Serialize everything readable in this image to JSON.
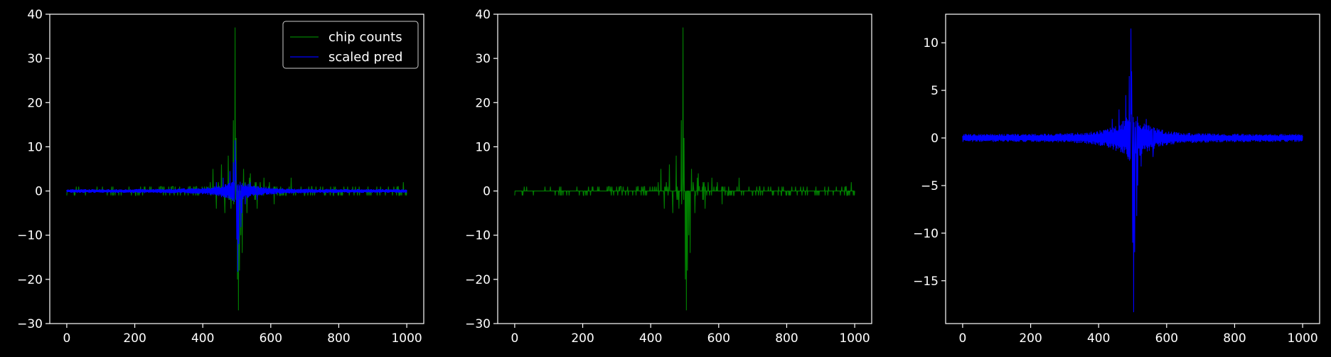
{
  "chart_data": [
    {
      "type": "line",
      "title": "",
      "xlabel": "",
      "ylabel": "",
      "xlim": [
        -50,
        1050
      ],
      "ylim": [
        -30,
        40
      ],
      "xticks": [
        0,
        200,
        400,
        600,
        800,
        1000
      ],
      "yticks": [
        -30,
        -20,
        -10,
        0,
        10,
        20,
        30,
        40
      ],
      "grid": false,
      "legend": {
        "placement": "top-right",
        "entries": [
          {
            "label": "chip counts",
            "color": "#008000"
          },
          {
            "label": "scaled pred",
            "color": "#0000ff"
          }
        ]
      },
      "series": [
        {
          "name": "chip counts",
          "color": "#008000",
          "x_range": [
            0,
            1000
          ],
          "baseline": 0,
          "noise_amplitude": 2,
          "peaks": [
            {
              "x": 430,
              "value": 5
            },
            {
              "x": 440,
              "value": -4
            },
            {
              "x": 455,
              "value": 6
            },
            {
              "x": 465,
              "value": -5
            },
            {
              "x": 475,
              "value": 8
            },
            {
              "x": 483,
              "value": -4
            },
            {
              "x": 490,
              "value": 16
            },
            {
              "x": 495,
              "value": 37
            },
            {
              "x": 498,
              "value": 12
            },
            {
              "x": 502,
              "value": -20
            },
            {
              "x": 505,
              "value": -27
            },
            {
              "x": 508,
              "value": -18
            },
            {
              "x": 512,
              "value": -10
            },
            {
              "x": 516,
              "value": -14
            },
            {
              "x": 520,
              "value": 5
            },
            {
              "x": 530,
              "value": -5
            },
            {
              "x": 540,
              "value": 4
            },
            {
              "x": 560,
              "value": -4
            },
            {
              "x": 580,
              "value": 3
            },
            {
              "x": 610,
              "value": -3
            },
            {
              "x": 660,
              "value": 3
            },
            {
              "x": 990,
              "value": 2
            }
          ]
        },
        {
          "name": "scaled pred",
          "color": "#0000ff",
          "x_range": [
            0,
            1000
          ],
          "band_width": 0.4,
          "peaks": [
            {
              "x": 440,
              "value": 2
            },
            {
              "x": 460,
              "value": 3
            },
            {
              "x": 480,
              "value": 4.5
            },
            {
              "x": 490,
              "value": 6.5
            },
            {
              "x": 495,
              "value": 11.5
            },
            {
              "x": 497,
              "value": 7
            },
            {
              "x": 500,
              "value": -11
            },
            {
              "x": 503,
              "value": -18.3
            },
            {
              "x": 506,
              "value": -12
            },
            {
              "x": 512,
              "value": -8.2
            },
            {
              "x": 515,
              "value": -5
            },
            {
              "x": 525,
              "value": -3
            },
            {
              "x": 540,
              "value": 2
            },
            {
              "x": 560,
              "value": -2
            }
          ]
        }
      ]
    },
    {
      "type": "line",
      "title": "",
      "xlabel": "",
      "ylabel": "",
      "xlim": [
        -50,
        1050
      ],
      "ylim": [
        -30,
        40
      ],
      "xticks": [
        0,
        200,
        400,
        600,
        800,
        1000
      ],
      "yticks": [
        -30,
        -20,
        -10,
        0,
        10,
        20,
        30,
        40
      ],
      "grid": false,
      "series": [
        {
          "name": "chip counts",
          "color": "#008000",
          "x_range": [
            0,
            1000
          ],
          "baseline": 0,
          "noise_amplitude": 2,
          "peaks": [
            {
              "x": 430,
              "value": 5
            },
            {
              "x": 440,
              "value": -4
            },
            {
              "x": 455,
              "value": 6
            },
            {
              "x": 465,
              "value": -5
            },
            {
              "x": 475,
              "value": 8
            },
            {
              "x": 483,
              "value": -4
            },
            {
              "x": 490,
              "value": 16
            },
            {
              "x": 495,
              "value": 37
            },
            {
              "x": 498,
              "value": 12
            },
            {
              "x": 502,
              "value": -20
            },
            {
              "x": 505,
              "value": -27
            },
            {
              "x": 508,
              "value": -18
            },
            {
              "x": 512,
              "value": -10
            },
            {
              "x": 516,
              "value": -14
            },
            {
              "x": 520,
              "value": 5
            },
            {
              "x": 530,
              "value": -5
            },
            {
              "x": 540,
              "value": 4
            },
            {
              "x": 560,
              "value": -4
            },
            {
              "x": 580,
              "value": 3
            },
            {
              "x": 610,
              "value": -3
            },
            {
              "x": 660,
              "value": 3
            },
            {
              "x": 990,
              "value": 2
            }
          ]
        }
      ]
    },
    {
      "type": "line",
      "title": "",
      "xlabel": "",
      "ylabel": "",
      "xlim": [
        -50,
        1050
      ],
      "ylim": [
        -19.5,
        13
      ],
      "xticks": [
        0,
        200,
        400,
        600,
        800,
        1000
      ],
      "yticks": [
        -15,
        -10,
        -5,
        0,
        5,
        10
      ],
      "grid": false,
      "series": [
        {
          "name": "scaled pred",
          "color": "#0000ff",
          "x_range": [
            0,
            1000
          ],
          "band_width": 0.4,
          "peaks": [
            {
              "x": 440,
              "value": 2
            },
            {
              "x": 460,
              "value": 3
            },
            {
              "x": 480,
              "value": 4.5
            },
            {
              "x": 490,
              "value": 6.5
            },
            {
              "x": 495,
              "value": 11.5
            },
            {
              "x": 497,
              "value": 7
            },
            {
              "x": 500,
              "value": -11
            },
            {
              "x": 503,
              "value": -18.3
            },
            {
              "x": 506,
              "value": -12
            },
            {
              "x": 512,
              "value": -8.2
            },
            {
              "x": 515,
              "value": -5
            },
            {
              "x": 525,
              "value": -3
            },
            {
              "x": 540,
              "value": 2
            },
            {
              "x": 560,
              "value": -2
            }
          ]
        }
      ]
    }
  ]
}
